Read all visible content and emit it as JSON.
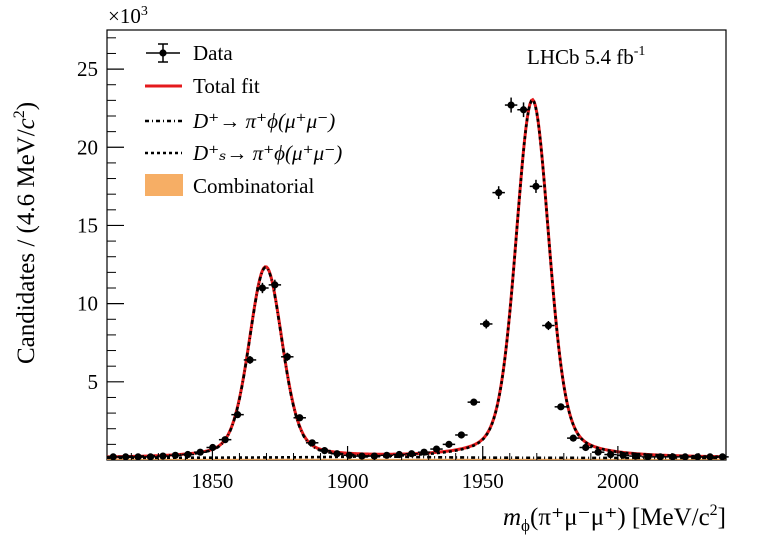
{
  "chart_data": {
    "type": "scatter",
    "title": "",
    "xlabel": {
      "main": "m",
      "sub": "ϕ",
      "decay": "(π⁺μ⁻μ⁺)",
      "unit_pre": "[MeV/c",
      "unit_sup": "2",
      "unit_post": "]"
    },
    "ylabel": {
      "pre": "Candidates / (4.6 MeV/",
      "c": "c",
      "sup": "2",
      "post": ")"
    },
    "xlim": [
      1811,
      2040
    ],
    "ylim": [
      0,
      27.5
    ],
    "y_multiplier_label": "×10",
    "y_multiplier_exp": "3",
    "x_ticks": [
      1850,
      1900,
      1950,
      2000
    ],
    "x_tick_labels": [
      "1850",
      "1900",
      "1950",
      "2000"
    ],
    "y_ticks": [
      5,
      10,
      15,
      20,
      25
    ],
    "y_tick_labels": [
      "5",
      "10",
      "15",
      "20",
      "25"
    ],
    "bin_width": 4.6,
    "annotation": {
      "text": "LHCb 5.4 fb",
      "sup": "-1"
    },
    "legend": {
      "placement": "top-left",
      "entries": [
        {
          "label": "Data",
          "style": "points"
        },
        {
          "label": "Total fit",
          "style": "line",
          "color": "#e41a1c"
        },
        {
          "label": "D⁺→ π⁺ϕ(μ⁺μ⁻)",
          "style": "dashdot",
          "color": "#000000"
        },
        {
          "label": "D⁺ₛ→ π⁺ϕ(μ⁺μ⁻)",
          "style": "dotted",
          "color": "#000000"
        },
        {
          "label": "Combinatorial",
          "style": "fill",
          "color": "#f5a04a"
        }
      ]
    },
    "fit_model": {
      "background_level": 0.12,
      "peaks": [
        {
          "name": "Dplus",
          "mean": 1869.7,
          "amplitude": 12.2,
          "sigma": 6.0
        },
        {
          "name": "Ds",
          "mean": 1968.4,
          "amplitude": 22.9,
          "sigma": 6.0
        }
      ]
    },
    "series": [
      {
        "name": "Data",
        "x": [
          1813.3,
          1817.9,
          1822.5,
          1827.1,
          1831.7,
          1836.3,
          1840.9,
          1845.5,
          1850.1,
          1854.7,
          1859.3,
          1863.9,
          1868.5,
          1873.1,
          1877.7,
          1882.3,
          1886.9,
          1891.5,
          1896.1,
          1900.7,
          1905.3,
          1909.9,
          1914.5,
          1919.1,
          1923.7,
          1928.3,
          1932.9,
          1937.5,
          1942.1,
          1946.7,
          1951.3,
          1955.9,
          1960.5,
          1965.1,
          1969.7,
          1974.3,
          1978.9,
          1983.5,
          1988.1,
          1992.7,
          1997.3,
          2001.9,
          2006.5,
          2011.1,
          2015.7,
          2020.3,
          2024.9,
          2029.5,
          2034.1,
          2038.7
        ],
        "y": [
          0.2,
          0.2,
          0.2,
          0.2,
          0.25,
          0.3,
          0.35,
          0.5,
          0.8,
          1.3,
          2.9,
          6.4,
          11.0,
          11.2,
          6.6,
          2.7,
          1.1,
          0.6,
          0.4,
          0.3,
          0.25,
          0.25,
          0.3,
          0.35,
          0.4,
          0.5,
          0.7,
          1.0,
          1.6,
          3.7,
          8.7,
          17.1,
          22.7,
          22.4,
          17.5,
          8.6,
          3.4,
          1.4,
          0.8,
          0.5,
          0.35,
          0.3,
          0.25,
          0.2,
          0.2,
          0.2,
          0.2,
          0.2,
          0.2,
          0.2
        ],
        "yerr": [
          0.05,
          0.05,
          0.05,
          0.05,
          0.05,
          0.05,
          0.06,
          0.07,
          0.09,
          0.11,
          0.17,
          0.25,
          0.33,
          0.33,
          0.26,
          0.16,
          0.1,
          0.08,
          0.06,
          0.05,
          0.05,
          0.05,
          0.05,
          0.06,
          0.06,
          0.07,
          0.08,
          0.1,
          0.13,
          0.19,
          0.29,
          0.41,
          0.48,
          0.47,
          0.42,
          0.29,
          0.18,
          0.12,
          0.09,
          0.07,
          0.06,
          0.05,
          0.05,
          0.05,
          0.05,
          0.05,
          0.05,
          0.05,
          0.05,
          0.05
        ]
      }
    ]
  }
}
